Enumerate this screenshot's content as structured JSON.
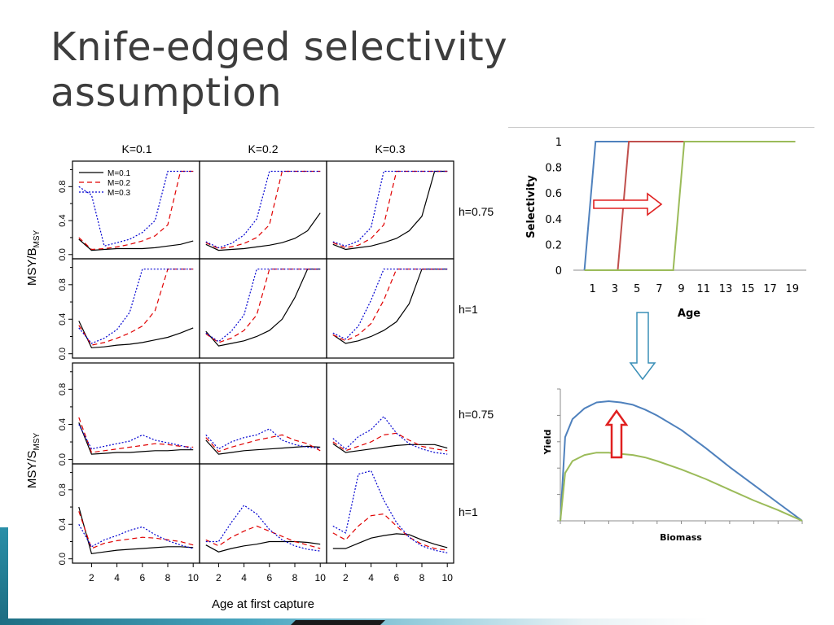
{
  "slide": {
    "title_line1": "Knife-edged selectivity",
    "title_line2": "assumption"
  },
  "chart_data": [
    {
      "type": "line",
      "panel_grid": "4x3",
      "column_titles": [
        "K=0.1",
        "K=0.2",
        "K=0.3"
      ],
      "row_labels": [
        "h=0.75",
        "h=1",
        "h=0.75",
        "h=1"
      ],
      "ylabel_top": "MSY/B",
      "ylabel_top_sub": "MSY",
      "ylabel_bottom": "MSY/S",
      "ylabel_bottom_sub": "MSY",
      "xlabel": "Age at first capture",
      "x_ticks": [
        "2",
        "4",
        "6",
        "8",
        "10"
      ],
      "y_ticks": [
        "0.0",
        "0.4",
        "0.8"
      ],
      "xlim": [
        0.5,
        10.5
      ],
      "ylim": [
        -0.05,
        1.1
      ],
      "legend": {
        "placement": "top-left of first panel",
        "entries": [
          "M=0.1",
          "M=0.2",
          "M=0.3"
        ]
      },
      "x": [
        1,
        2,
        3,
        4,
        5,
        6,
        7,
        8,
        9,
        10
      ],
      "series_styles": [
        {
          "name": "M=0.1",
          "color": "#000000",
          "dash": ""
        },
        {
          "name": "M=0.2",
          "color": "#e00000",
          "dash": "6,4"
        },
        {
          "name": "M=0.3",
          "color": "#0000d0",
          "dash": "2,2"
        }
      ],
      "panels": [
        [
          [
            [
              0.18,
              0.05,
              0.06,
              0.07,
              0.07,
              0.07,
              0.08,
              0.1,
              0.12,
              0.16
            ],
            [
              0.2,
              0.06,
              0.07,
              0.09,
              0.12,
              0.16,
              0.22,
              0.35,
              0.98,
              0.98
            ],
            [
              0.8,
              0.7,
              0.1,
              0.14,
              0.18,
              0.26,
              0.4,
              0.98,
              0.98,
              0.98
            ]
          ],
          [
            [
              0.12,
              0.05,
              0.06,
              0.07,
              0.09,
              0.11,
              0.14,
              0.19,
              0.28,
              0.49
            ],
            [
              0.14,
              0.07,
              0.09,
              0.13,
              0.2,
              0.35,
              0.98,
              0.98,
              0.98,
              0.98
            ],
            [
              0.15,
              0.08,
              0.13,
              0.23,
              0.42,
              0.98,
              0.98,
              0.98,
              0.98,
              0.98
            ]
          ],
          [
            [
              0.12,
              0.06,
              0.08,
              0.1,
              0.14,
              0.19,
              0.28,
              0.45,
              0.98,
              0.98
            ],
            [
              0.14,
              0.08,
              0.11,
              0.19,
              0.35,
              0.98,
              0.98,
              0.98,
              0.98,
              0.98
            ],
            [
              0.15,
              0.1,
              0.16,
              0.32,
              0.98,
              0.98,
              0.98,
              0.98,
              0.98,
              0.98
            ]
          ]
        ],
        [
          [
            [
              0.38,
              0.07,
              0.08,
              0.1,
              0.11,
              0.13,
              0.16,
              0.19,
              0.24,
              0.3
            ],
            [
              0.33,
              0.1,
              0.13,
              0.18,
              0.24,
              0.32,
              0.5,
              0.98,
              0.98,
              0.98
            ],
            [
              0.3,
              0.12,
              0.18,
              0.28,
              0.48,
              0.98,
              0.98,
              0.98,
              0.98,
              0.98
            ]
          ],
          [
            [
              0.26,
              0.09,
              0.12,
              0.15,
              0.2,
              0.27,
              0.4,
              0.65,
              0.98,
              0.98
            ],
            [
              0.23,
              0.13,
              0.18,
              0.27,
              0.45,
              0.98,
              0.98,
              0.98,
              0.98,
              0.98
            ],
            [
              0.24,
              0.14,
              0.26,
              0.45,
              0.98,
              0.98,
              0.98,
              0.98,
              0.98,
              0.98
            ]
          ],
          [
            [
              0.22,
              0.12,
              0.15,
              0.2,
              0.27,
              0.37,
              0.58,
              0.98,
              0.98,
              0.98
            ],
            [
              0.22,
              0.15,
              0.22,
              0.35,
              0.62,
              0.98,
              0.98,
              0.98,
              0.98,
              0.98
            ],
            [
              0.24,
              0.17,
              0.32,
              0.62,
              0.98,
              0.98,
              0.98,
              0.98,
              0.98,
              0.98
            ]
          ]
        ],
        [
          [
            [
              0.42,
              0.06,
              0.07,
              0.08,
              0.08,
              0.09,
              0.1,
              0.1,
              0.11,
              0.11
            ],
            [
              0.48,
              0.08,
              0.1,
              0.12,
              0.14,
              0.16,
              0.18,
              0.17,
              0.15,
              0.14
            ],
            [
              0.4,
              0.12,
              0.15,
              0.18,
              0.21,
              0.28,
              0.22,
              0.19,
              0.16,
              0.12
            ]
          ],
          [
            [
              0.22,
              0.06,
              0.08,
              0.1,
              0.11,
              0.12,
              0.13,
              0.14,
              0.15,
              0.14
            ],
            [
              0.25,
              0.09,
              0.14,
              0.18,
              0.22,
              0.25,
              0.28,
              0.22,
              0.18,
              0.1
            ],
            [
              0.28,
              0.12,
              0.2,
              0.25,
              0.28,
              0.35,
              0.22,
              0.17,
              0.14,
              0.13
            ]
          ],
          [
            [
              0.18,
              0.08,
              0.1,
              0.12,
              0.14,
              0.16,
              0.17,
              0.17,
              0.17,
              0.13
            ],
            [
              0.2,
              0.1,
              0.15,
              0.2,
              0.28,
              0.3,
              0.22,
              0.15,
              0.12,
              0.1
            ],
            [
              0.24,
              0.12,
              0.26,
              0.34,
              0.49,
              0.3,
              0.18,
              0.12,
              0.08,
              0.06
            ]
          ]
        ],
        [
          [
            [
              0.6,
              0.06,
              0.08,
              0.1,
              0.11,
              0.12,
              0.13,
              0.14,
              0.14,
              0.13
            ],
            [
              0.55,
              0.12,
              0.18,
              0.21,
              0.23,
              0.25,
              0.24,
              0.22,
              0.2,
              0.16
            ],
            [
              0.4,
              0.14,
              0.22,
              0.27,
              0.33,
              0.37,
              0.28,
              0.21,
              0.16,
              0.12
            ]
          ],
          [
            [
              0.16,
              0.08,
              0.12,
              0.15,
              0.17,
              0.2,
              0.2,
              0.2,
              0.19,
              0.17
            ],
            [
              0.22,
              0.15,
              0.25,
              0.32,
              0.38,
              0.32,
              0.26,
              0.2,
              0.16,
              0.12
            ],
            [
              0.2,
              0.2,
              0.42,
              0.62,
              0.52,
              0.34,
              0.22,
              0.15,
              0.11,
              0.09
            ]
          ],
          [
            [
              0.12,
              0.12,
              0.18,
              0.24,
              0.27,
              0.29,
              0.28,
              0.22,
              0.17,
              0.13
            ],
            [
              0.3,
              0.22,
              0.38,
              0.5,
              0.52,
              0.38,
              0.25,
              0.17,
              0.12,
              0.1
            ],
            [
              0.38,
              0.3,
              0.98,
              1.02,
              0.68,
              0.42,
              0.25,
              0.15,
              0.1,
              0.07
            ]
          ]
        ]
      ]
    },
    {
      "type": "line",
      "ylabel": "Selectivity",
      "xlabel": "Age",
      "ylim": [
        0,
        1
      ],
      "xlim": [
        0,
        21
      ],
      "y_ticks": [
        "0",
        "0.2",
        "0.4",
        "0.6",
        "0.8",
        "1"
      ],
      "x_ticks": [
        "1",
        "3",
        "5",
        "7",
        "9",
        "11",
        "13",
        "15",
        "17",
        "19"
      ],
      "grid": false,
      "series": [
        {
          "color": "#4f81bd",
          "x": [
            1,
            2,
            20
          ],
          "y": [
            0,
            1,
            1
          ]
        },
        {
          "color": "#c0504d",
          "x": [
            4,
            5,
            20
          ],
          "y": [
            0,
            1,
            1
          ]
        },
        {
          "color": "#9bbb59",
          "x": [
            1,
            9,
            10,
            20
          ],
          "y": [
            0,
            0,
            1,
            1
          ]
        }
      ],
      "annotation": "right-arrow"
    },
    {
      "type": "line",
      "ylabel": "Yield",
      "xlabel": "Biomass",
      "grid": false,
      "series": [
        {
          "color": "#4f81bd",
          "x": [
            0,
            0.02,
            0.05,
            0.1,
            0.15,
            0.2,
            0.25,
            0.3,
            0.35,
            0.4,
            0.5,
            0.6,
            0.7,
            0.8,
            0.9,
            1.0
          ],
          "y": [
            0,
            0.7,
            0.85,
            0.94,
            0.99,
            1.0,
            0.99,
            0.97,
            0.93,
            0.88,
            0.76,
            0.61,
            0.45,
            0.3,
            0.15,
            0
          ]
        },
        {
          "color": "#9bbb59",
          "x": [
            0,
            0.02,
            0.05,
            0.1,
            0.15,
            0.2,
            0.25,
            0.3,
            0.35,
            0.4,
            0.5,
            0.6,
            0.7,
            0.8,
            0.9,
            1.0
          ],
          "y": [
            0,
            0.4,
            0.5,
            0.55,
            0.57,
            0.57,
            0.56,
            0.55,
            0.53,
            0.5,
            0.43,
            0.35,
            0.26,
            0.17,
            0.09,
            0
          ]
        }
      ],
      "annotation": "up-arrow"
    }
  ]
}
